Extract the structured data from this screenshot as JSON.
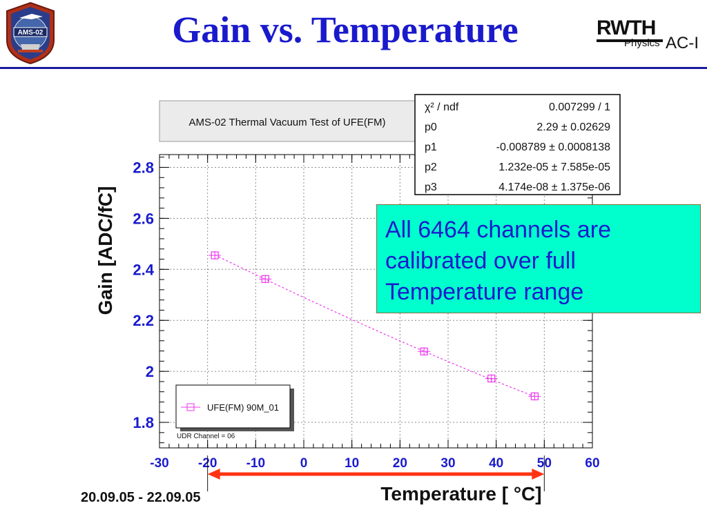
{
  "slide": {
    "title": "Gain vs. Temperature",
    "date_range": "20.09.05 - 22.09.05",
    "note_lines": [
      "All 6464 channels are",
      "calibrated over full",
      "Temperature range"
    ],
    "logo_left": "AMS-02",
    "logo_right": {
      "word": "RWTH",
      "physics": "Physics",
      "ac": "AC-I"
    }
  },
  "chart_data": {
    "type": "scatter",
    "title": "AMS-02 Thermal Vacuum Test of UFE(FM)",
    "xlabel": "Temperature [ °C]",
    "ylabel": "Gain [ADC/fC]",
    "xlim": [
      -30,
      60
    ],
    "ylim": [
      1.7,
      2.85
    ],
    "x_ticks": [
      "-30",
      "-20",
      "-10",
      "0",
      "10",
      "20",
      "30",
      "40",
      "50",
      "60"
    ],
    "y_ticks": [
      "1.8",
      "2",
      "2.2",
      "2.4",
      "2.6",
      "2.8"
    ],
    "grid": true,
    "legend": {
      "position": "bottom-left",
      "entry": "UFE(FM) 90M_01",
      "note": "UDR Channel = 06"
    },
    "series": [
      {
        "name": "UFE(FM) 90M_01",
        "color": "#ee33ee",
        "x": [
          -18.5,
          -8,
          25,
          39,
          48
        ],
        "y": [
          2.455,
          2.362,
          2.078,
          1.972,
          1.902
        ],
        "yerr": [
          0.016,
          0.016,
          0.016,
          0.016,
          0.016
        ]
      }
    ],
    "fit": {
      "function": "p0 + p1*x + p2*x^2 + p3*x^3",
      "params": [
        2.29,
        -0.008789,
        1.232e-05,
        4.174e-08
      ],
      "range": [
        -18.5,
        48
      ],
      "color": "#ee33ee"
    },
    "stats": [
      {
        "label": "χ² / ndf",
        "value": "0.007299 / 1"
      },
      {
        "label": "p0",
        "value": "2.29 ± 0.02629"
      },
      {
        "label": "p1",
        "value": "-0.008789 ± 0.0008138"
      },
      {
        "label": "p2",
        "value": "1.232e-05 ± 7.585e-05"
      },
      {
        "label": "p3",
        "value": "4.174e-08 ± 1.375e-06"
      }
    ],
    "range_arrow": {
      "from": -20,
      "to": 50,
      "color": "#ff3311"
    }
  }
}
